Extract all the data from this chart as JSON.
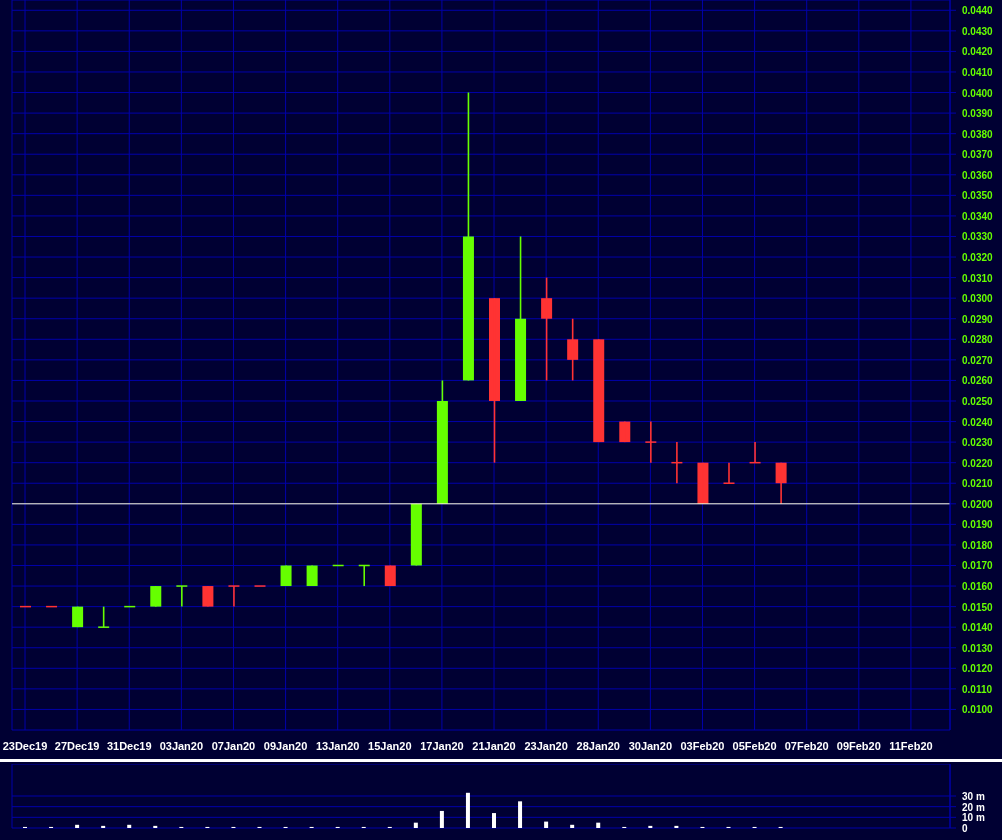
{
  "chart_data": [
    {
      "type": "candlestick",
      "categories": [
        "23Dec19",
        null,
        "27Dec19",
        null,
        "31Dec19",
        null,
        "03Jan20",
        null,
        "07Jan20",
        null,
        "09Jan20",
        null,
        "13Jan20",
        null,
        "15Jan20",
        null,
        "17Jan20",
        null,
        "21Jan20",
        null,
        "23Jan20",
        null,
        "28Jan20",
        null,
        "30Jan20",
        null,
        "03Feb20",
        null,
        "05Feb20",
        null,
        "07Feb20",
        null,
        "09Feb20",
        null,
        "11Feb20",
        null
      ],
      "ohlc": [
        [
          0.015,
          0.015,
          0.015,
          0.015
        ],
        [
          0.015,
          0.015,
          0.015,
          0.015
        ],
        [
          0.014,
          0.015,
          0.014,
          0.015
        ],
        [
          0.014,
          0.015,
          0.014,
          0.014
        ],
        [
          0.015,
          0.015,
          0.015,
          0.015
        ],
        [
          0.015,
          0.016,
          0.015,
          0.016
        ],
        [
          0.016,
          0.016,
          0.015,
          0.016
        ],
        [
          0.016,
          0.016,
          0.015,
          0.015
        ],
        [
          0.016,
          0.016,
          0.015,
          0.016
        ],
        [
          0.016,
          0.016,
          0.016,
          0.016
        ],
        [
          0.016,
          0.017,
          0.016,
          0.017
        ],
        [
          0.016,
          0.017,
          0.016,
          0.017
        ],
        [
          0.017,
          0.017,
          0.017,
          0.017
        ],
        [
          0.017,
          0.017,
          0.016,
          0.017
        ],
        [
          0.017,
          0.017,
          0.016,
          0.016
        ],
        [
          0.017,
          0.02,
          0.017,
          0.02
        ],
        [
          0.02,
          0.026,
          0.02,
          0.025
        ],
        [
          0.026,
          0.04,
          0.026,
          0.033
        ],
        [
          0.03,
          0.03,
          0.022,
          0.025
        ],
        [
          0.025,
          0.033,
          0.025,
          0.029
        ],
        [
          0.03,
          0.031,
          0.026,
          0.029
        ],
        [
          0.028,
          0.029,
          0.026,
          0.027
        ],
        [
          0.028,
          0.028,
          0.023,
          0.023
        ],
        [
          0.024,
          0.024,
          0.023,
          0.023
        ],
        [
          0.023,
          0.024,
          0.022,
          0.023
        ],
        [
          0.022,
          0.023,
          0.021,
          0.022
        ],
        [
          0.022,
          0.022,
          0.02,
          0.02
        ],
        [
          0.021,
          0.022,
          0.021,
          0.021
        ],
        [
          0.022,
          0.023,
          0.022,
          0.022
        ],
        [
          0.022,
          0.022,
          0.02,
          0.021
        ],
        null,
        null,
        null,
        null,
        null,
        null
      ],
      "colors": [
        "#ff3333",
        "#ff3333",
        "#66ff00",
        "#66ff00",
        "#66ff00",
        "#66ff00",
        "#66ff00",
        "#ff3333",
        "#ff3333",
        "#ff3333",
        "#66ff00",
        "#66ff00",
        "#66ff00",
        "#66ff00",
        "#ff3333",
        "#66ff00",
        "#66ff00",
        "#66ff00",
        "#ff3333",
        "#66ff00",
        "#ff3333",
        "#ff3333",
        "#ff3333",
        "#ff3333",
        "#ff3333",
        "#ff3333",
        "#ff3333",
        "#ff3333",
        "#ff3333",
        "#ff3333",
        null,
        null,
        null,
        null,
        null,
        null
      ],
      "ylim": [
        0.009,
        0.0445
      ],
      "yticks": [
        {
          "value": 0.01,
          "label": "0.0100"
        },
        {
          "value": 0.011,
          "label": "0.0110"
        },
        {
          "value": 0.012,
          "label": "0.0120"
        },
        {
          "value": 0.013,
          "label": "0.0130"
        },
        {
          "value": 0.014,
          "label": "0.0140"
        },
        {
          "value": 0.015,
          "label": "0.0150"
        },
        {
          "value": 0.016,
          "label": "0.0160"
        },
        {
          "value": 0.017,
          "label": "0.0170"
        },
        {
          "value": 0.018,
          "label": "0.0180"
        },
        {
          "value": 0.019,
          "label": "0.0190"
        },
        {
          "value": 0.02,
          "label": "0.0200"
        },
        {
          "value": 0.021,
          "label": "0.0210"
        },
        {
          "value": 0.022,
          "label": "0.0220"
        },
        {
          "value": 0.023,
          "label": "0.0230"
        },
        {
          "value": 0.024,
          "label": "0.0240"
        },
        {
          "value": 0.025,
          "label": "0.0250"
        },
        {
          "value": 0.026,
          "label": "0.0260"
        },
        {
          "value": 0.027,
          "label": "0.0270"
        },
        {
          "value": 0.028,
          "label": "0.0280"
        },
        {
          "value": 0.029,
          "label": "0.0290"
        },
        {
          "value": 0.03,
          "label": "0.0300"
        },
        {
          "value": 0.031,
          "label": "0.0310"
        },
        {
          "value": 0.032,
          "label": "0.0320"
        },
        {
          "value": 0.033,
          "label": "0.0330"
        },
        {
          "value": 0.034,
          "label": "0.0340"
        },
        {
          "value": 0.035,
          "label": "0.0350"
        },
        {
          "value": 0.036,
          "label": "0.0360"
        },
        {
          "value": 0.037,
          "label": "0.0370"
        },
        {
          "value": 0.038,
          "label": "0.0380"
        },
        {
          "value": 0.039,
          "label": "0.0390"
        },
        {
          "value": 0.04,
          "label": "0.0400"
        },
        {
          "value": 0.041,
          "label": "0.0410"
        },
        {
          "value": 0.042,
          "label": "0.0420"
        },
        {
          "value": 0.043,
          "label": "0.0430"
        },
        {
          "value": 0.044,
          "label": "0.0440"
        }
      ],
      "grid": true,
      "ref_lines": [
        {
          "axis": "y",
          "value": 0.02,
          "color": "#ffffcc"
        }
      ]
    },
    {
      "type": "bar",
      "categories": [
        null,
        null,
        null,
        null,
        null,
        null,
        null,
        null,
        null,
        null,
        null,
        null,
        null,
        null,
        null,
        null,
        null,
        null,
        null,
        null,
        null,
        null,
        null,
        null,
        null,
        null,
        null,
        null,
        null,
        null,
        null,
        null,
        null,
        null,
        null,
        null
      ],
      "values": [
        1,
        1,
        3,
        2,
        3,
        2,
        1,
        1,
        1,
        1,
        1,
        1,
        1,
        1,
        1,
        5,
        16,
        33,
        14,
        25,
        6,
        3,
        5,
        1,
        2,
        2,
        1,
        1,
        1,
        1,
        null,
        null,
        null,
        null,
        null,
        null
      ],
      "color": "#ffffff",
      "ylim": [
        0,
        60
      ],
      "yticks": [
        0,
        {
          "value": 10,
          "label": "10 m"
        },
        {
          "value": 20,
          "label": "20 m"
        },
        {
          "value": 30,
          "label": "30 m"
        }
      ],
      "grid": true,
      "tick_labels": "y"
    }
  ]
}
